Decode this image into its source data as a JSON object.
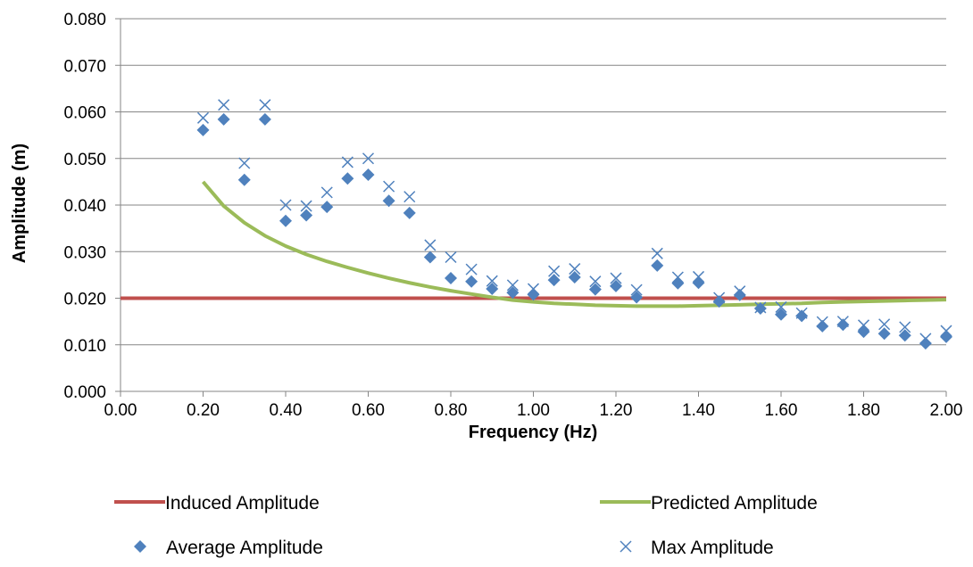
{
  "chart_data": {
    "type": "scatter",
    "title": "",
    "xlabel": "Frequency (Hz)",
    "ylabel": "Amplitude (m)",
    "xlim": [
      0.0,
      2.0
    ],
    "ylim": [
      0.0,
      0.08
    ],
    "x_ticks": [
      "0.00",
      "0.20",
      "0.40",
      "0.60",
      "0.80",
      "1.00",
      "1.20",
      "1.40",
      "1.60",
      "1.80",
      "2.00"
    ],
    "y_ticks": [
      "0.000",
      "0.010",
      "0.020",
      "0.030",
      "0.040",
      "0.050",
      "0.060",
      "0.070",
      "0.080"
    ],
    "grid": "horizontal",
    "legend_position": "bottom",
    "colors": {
      "induced": "#c0504d",
      "predicted": "#9bbb59",
      "average": "#4f81bd",
      "max": "#4f81bd",
      "grid": "#868686"
    },
    "series": [
      {
        "name": "Induced Amplitude",
        "kind": "line",
        "x": [
          0.0,
          2.0
        ],
        "y": [
          0.02,
          0.02
        ]
      },
      {
        "name": "Predicted Amplitude",
        "kind": "line",
        "x": [
          0.2,
          0.25,
          0.3,
          0.35,
          0.4,
          0.45,
          0.5,
          0.55,
          0.6,
          0.65,
          0.7,
          0.75,
          0.8,
          0.85,
          0.9,
          0.95,
          1.0,
          1.05,
          1.1,
          1.15,
          1.2,
          1.25,
          1.3,
          1.35,
          1.4,
          1.45,
          1.5,
          1.55,
          1.6,
          1.65,
          1.7,
          1.75,
          1.8,
          1.85,
          1.9,
          1.95,
          2.0
        ],
        "y": [
          0.045,
          0.0398,
          0.0362,
          0.0334,
          0.0312,
          0.0294,
          0.0279,
          0.0266,
          0.0254,
          0.0243,
          0.0233,
          0.0224,
          0.0216,
          0.0209,
          0.0202,
          0.0196,
          0.0192,
          0.0189,
          0.0187,
          0.0185,
          0.0184,
          0.0183,
          0.0183,
          0.0183,
          0.0184,
          0.0185,
          0.0186,
          0.0187,
          0.0188,
          0.0189,
          0.0191,
          0.0192,
          0.0193,
          0.0194,
          0.0195,
          0.0196,
          0.0197
        ]
      },
      {
        "name": "Average Amplitude",
        "kind": "diamond",
        "x": [
          0.2,
          0.25,
          0.3,
          0.35,
          0.4,
          0.45,
          0.5,
          0.55,
          0.6,
          0.65,
          0.7,
          0.75,
          0.8,
          0.85,
          0.9,
          0.95,
          1.0,
          1.05,
          1.1,
          1.15,
          1.2,
          1.25,
          1.3,
          1.35,
          1.4,
          1.45,
          1.5,
          1.55,
          1.6,
          1.65,
          1.7,
          1.75,
          1.8,
          1.85,
          1.9,
          1.95,
          2.0
        ],
        "y": [
          0.0561,
          0.0584,
          0.0454,
          0.0584,
          0.0366,
          0.0378,
          0.0396,
          0.0457,
          0.0465,
          0.0409,
          0.0383,
          0.0288,
          0.0243,
          0.0236,
          0.022,
          0.0212,
          0.0208,
          0.0239,
          0.0245,
          0.0219,
          0.0226,
          0.0202,
          0.027,
          0.0232,
          0.0233,
          0.0193,
          0.0207,
          0.0178,
          0.0165,
          0.0162,
          0.014,
          0.0143,
          0.0128,
          0.0124,
          0.012,
          0.0103,
          0.0117
        ]
      },
      {
        "name": "Max Amplitude",
        "kind": "x",
        "x": [
          0.2,
          0.25,
          0.3,
          0.35,
          0.4,
          0.45,
          0.5,
          0.55,
          0.6,
          0.65,
          0.7,
          0.75,
          0.8,
          0.85,
          0.9,
          0.95,
          1.0,
          1.05,
          1.1,
          1.15,
          1.2,
          1.25,
          1.3,
          1.35,
          1.4,
          1.45,
          1.5,
          1.55,
          1.6,
          1.65,
          1.7,
          1.75,
          1.8,
          1.85,
          1.9,
          1.95,
          2.0
        ],
        "y": [
          0.0587,
          0.0615,
          0.049,
          0.0615,
          0.04,
          0.0398,
          0.0427,
          0.0492,
          0.05,
          0.044,
          0.0418,
          0.0314,
          0.0288,
          0.0262,
          0.0237,
          0.0228,
          0.022,
          0.0258,
          0.0263,
          0.0236,
          0.0243,
          0.0218,
          0.0296,
          0.0245,
          0.0246,
          0.0201,
          0.0215,
          0.018,
          0.0181,
          0.0168,
          0.0149,
          0.015,
          0.0142,
          0.0144,
          0.0138,
          0.0113,
          0.013
        ]
      }
    ]
  }
}
